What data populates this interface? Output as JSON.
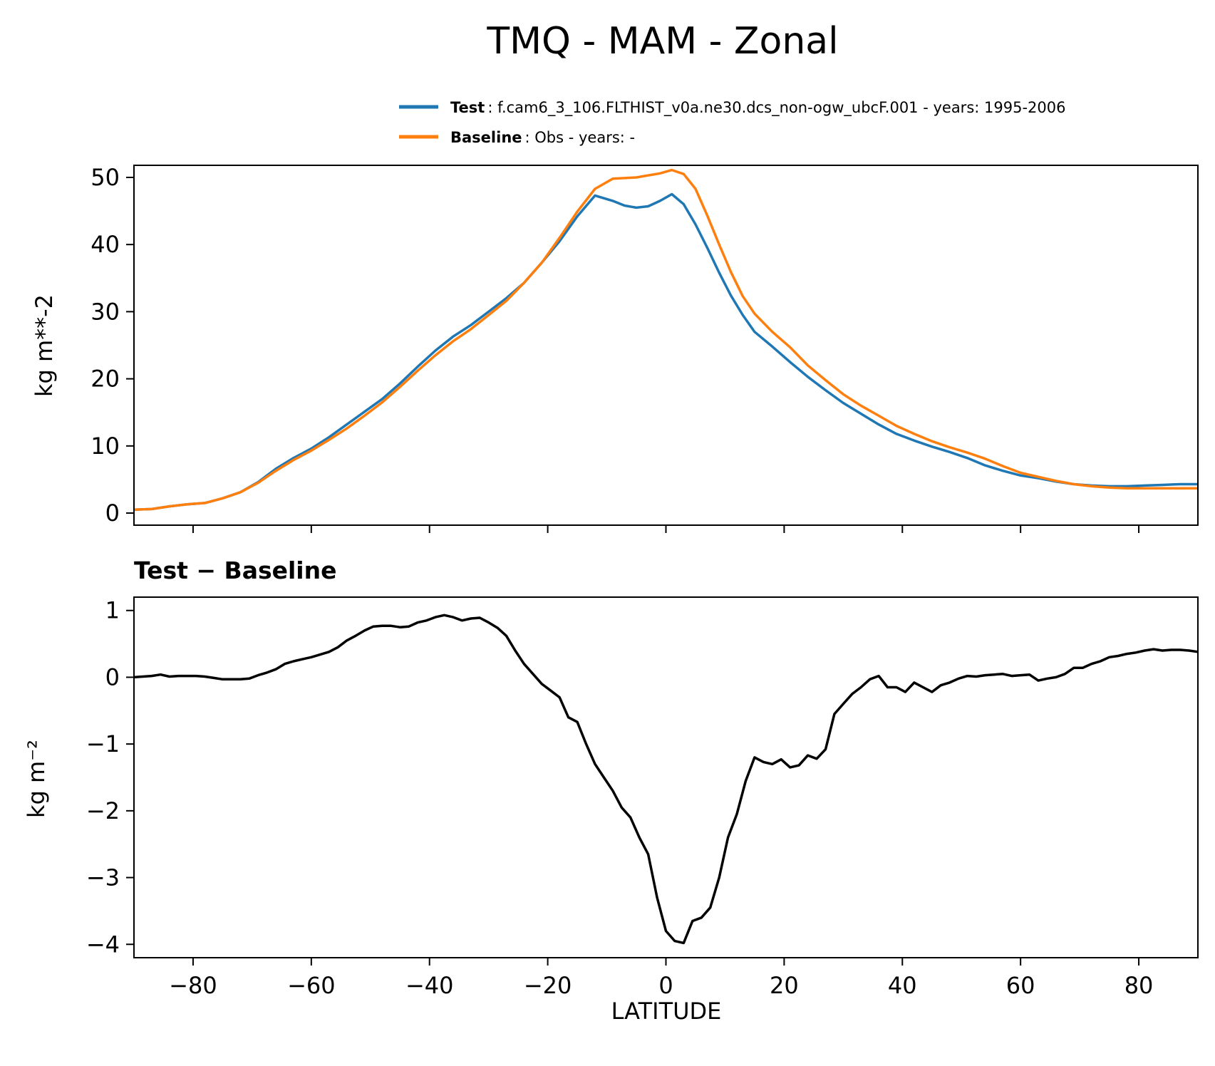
{
  "figure_title": "TMQ - MAM - Zonal",
  "colors": {
    "test": "#1f77b4",
    "baseline": "#ff7f0e",
    "diff": "#000000"
  },
  "legend": {
    "test_name": "Test",
    "test_desc": ": f.cam6_3_106.FLTHIST_v0a.ne30.dcs_non-ogw_ubcF.001 - years: 1995-2006",
    "baseline_name": "Baseline",
    "baseline_desc": ": Obs - years: -"
  },
  "chart_data": [
    {
      "type": "line",
      "title": "",
      "ylabel": "kg m**-2",
      "xlabel": "",
      "xlim": [
        -90,
        90
      ],
      "ylim": [
        -1.8,
        51.8
      ],
      "xticks": [
        -80,
        -60,
        -40,
        -20,
        0,
        20,
        40,
        60,
        80
      ],
      "yticks": [
        0,
        10,
        20,
        30,
        40,
        50
      ],
      "ytick_labels": [
        "0",
        "10",
        "20",
        "30",
        "40",
        "50"
      ],
      "series": [
        {
          "name": "Test",
          "x": [
            -90,
            -87,
            -84,
            -81,
            -78,
            -75,
            -72,
            -69,
            -66,
            -63,
            -60,
            -57,
            -54,
            -51,
            -48,
            -45,
            -42,
            -39,
            -36,
            -33,
            -30,
            -27,
            -24,
            -21,
            -18,
            -15,
            -12,
            -9,
            -7,
            -5,
            -3,
            -1,
            1,
            3,
            5,
            7,
            9,
            11,
            13,
            15,
            18,
            21,
            24,
            27,
            30,
            33,
            36,
            39,
            42,
            45,
            48,
            51,
            54,
            57,
            60,
            63,
            66,
            69,
            72,
            75,
            78,
            81,
            84,
            87,
            90
          ],
          "values": [
            0.5,
            0.6,
            1.0,
            1.3,
            1.5,
            2.2,
            3.1,
            4.6,
            6.6,
            8.2,
            9.6,
            11.3,
            13.2,
            15.1,
            17.0,
            19.3,
            21.8,
            24.2,
            26.3,
            28.0,
            30.0,
            32.0,
            34.3,
            37.3,
            40.5,
            44.2,
            47.3,
            46.5,
            45.8,
            45.5,
            45.7,
            46.5,
            47.5,
            46.0,
            43.0,
            39.5,
            35.8,
            32.4,
            29.5,
            27.0,
            24.8,
            22.5,
            20.3,
            18.3,
            16.4,
            14.8,
            13.2,
            11.8,
            10.8,
            9.9,
            9.1,
            8.2,
            7.1,
            6.3,
            5.6,
            5.2,
            4.7,
            4.3,
            4.1,
            4.0,
            4.0,
            4.1,
            4.2,
            4.3,
            4.3
          ]
        },
        {
          "name": "Baseline",
          "x": [
            -90,
            -87,
            -84,
            -81,
            -78,
            -75,
            -72,
            -69,
            -66,
            -63,
            -60,
            -57,
            -54,
            -51,
            -48,
            -45,
            -42,
            -39,
            -36,
            -33,
            -30,
            -27,
            -24,
            -21,
            -18,
            -15,
            -12,
            -9,
            -7,
            -5,
            -3,
            -1,
            1,
            3,
            5,
            7,
            9,
            11,
            13,
            15,
            18,
            21,
            24,
            27,
            30,
            33,
            36,
            39,
            42,
            45,
            48,
            51,
            54,
            57,
            60,
            63,
            66,
            69,
            72,
            75,
            78,
            81,
            84,
            87,
            90
          ],
          "values": [
            0.5,
            0.6,
            1.0,
            1.3,
            1.5,
            2.2,
            3.1,
            4.5,
            6.3,
            7.9,
            9.3,
            10.9,
            12.6,
            14.5,
            16.5,
            18.8,
            21.2,
            23.5,
            25.6,
            27.4,
            29.5,
            31.6,
            34.3,
            37.3,
            41.0,
            44.9,
            48.3,
            49.8,
            49.9,
            50.0,
            50.3,
            50.6,
            51.1,
            50.5,
            48.3,
            44.3,
            40.0,
            35.9,
            32.3,
            29.7,
            27.0,
            24.7,
            22.0,
            19.8,
            17.7,
            16.0,
            14.5,
            13.0,
            11.8,
            10.7,
            9.8,
            9.0,
            8.1,
            7.0,
            6.0,
            5.4,
            4.8,
            4.3,
            4.0,
            3.8,
            3.7,
            3.7,
            3.7,
            3.7,
            3.7
          ]
        }
      ]
    },
    {
      "type": "line",
      "title": "Test − Baseline",
      "ylabel": "kg m⁻²",
      "xlabel": "LATITUDE",
      "xlim": [
        -90,
        90
      ],
      "ylim": [
        -4.2,
        1.2
      ],
      "xticks": [
        -80,
        -60,
        -40,
        -20,
        0,
        20,
        40,
        60,
        80
      ],
      "xtick_labels": [
        "−80",
        "−60",
        "−40",
        "−20",
        "0",
        "20",
        "40",
        "60",
        "80"
      ],
      "yticks": [
        -4,
        -3,
        -2,
        -1,
        0,
        1
      ],
      "ytick_labels": [
        "−4",
        "−3",
        "−2",
        "−1",
        "0",
        "1"
      ],
      "series": [
        {
          "name": "Test - Baseline",
          "x": [
            -90,
            -88.5,
            -87,
            -85.5,
            -84,
            -82.5,
            -81,
            -79.5,
            -78,
            -76.5,
            -75,
            -73.5,
            -72,
            -70.5,
            -69,
            -67.5,
            -66,
            -64.5,
            -63,
            -61.5,
            -60,
            -58.5,
            -57,
            -55.5,
            -54,
            -52.5,
            -51,
            -49.5,
            -48,
            -46.5,
            -45,
            -43.5,
            -42,
            -40.5,
            -39,
            -37.5,
            -36,
            -34.5,
            -33,
            -31.5,
            -30,
            -28.5,
            -27,
            -25.5,
            -24,
            -22.5,
            -21,
            -19.5,
            -18,
            -16.5,
            -15,
            -13.5,
            -12,
            -10.5,
            -9,
            -7.5,
            -6,
            -4.5,
            -3,
            -1.5,
            0,
            1.5,
            3,
            4.5,
            6,
            7.5,
            9,
            10.5,
            12,
            13.5,
            15,
            16.5,
            18,
            19.5,
            21,
            22.5,
            24,
            25.5,
            27,
            28.5,
            30,
            31.5,
            33,
            34.5,
            36,
            37.5,
            39,
            40.5,
            42,
            43.5,
            45,
            46.5,
            48,
            49.5,
            51,
            52.5,
            54,
            55.5,
            57,
            58.5,
            60,
            61.5,
            63,
            64.5,
            66,
            67.5,
            69,
            70.5,
            72,
            73.5,
            75,
            76.5,
            78,
            79.5,
            81,
            82.5,
            84,
            85.5,
            87,
            88.5,
            90
          ],
          "values": [
            0.0,
            0.01,
            0.02,
            0.04,
            0.01,
            0.02,
            0.02,
            0.02,
            0.01,
            -0.01,
            -0.03,
            -0.03,
            -0.03,
            -0.02,
            0.03,
            0.07,
            0.12,
            0.2,
            0.24,
            0.27,
            0.3,
            0.34,
            0.38,
            0.45,
            0.55,
            0.62,
            0.7,
            0.76,
            0.77,
            0.77,
            0.75,
            0.76,
            0.82,
            0.85,
            0.9,
            0.93,
            0.9,
            0.85,
            0.88,
            0.89,
            0.82,
            0.74,
            0.62,
            0.4,
            0.2,
            0.05,
            -0.1,
            -0.2,
            -0.3,
            -0.6,
            -0.67,
            -1.0,
            -1.3,
            -1.5,
            -1.7,
            -1.95,
            -2.1,
            -2.4,
            -2.65,
            -3.3,
            -3.8,
            -3.95,
            -3.98,
            -3.65,
            -3.6,
            -3.45,
            -3.0,
            -2.4,
            -2.05,
            -1.55,
            -1.2,
            -1.27,
            -1.3,
            -1.23,
            -1.35,
            -1.32,
            -1.17,
            -1.22,
            -1.08,
            -0.55,
            -0.4,
            -0.25,
            -0.15,
            -0.03,
            0.02,
            -0.15,
            -0.15,
            -0.22,
            -0.08,
            -0.15,
            -0.22,
            -0.12,
            -0.08,
            -0.02,
            0.02,
            0.01,
            0.03,
            0.04,
            0.05,
            0.02,
            0.03,
            0.04,
            -0.05,
            -0.02,
            0.0,
            0.05,
            0.14,
            0.14,
            0.2,
            0.24,
            0.3,
            0.32,
            0.35,
            0.37,
            0.4,
            0.42,
            0.4,
            0.41,
            0.41,
            0.4,
            0.38
          ]
        }
      ]
    }
  ]
}
